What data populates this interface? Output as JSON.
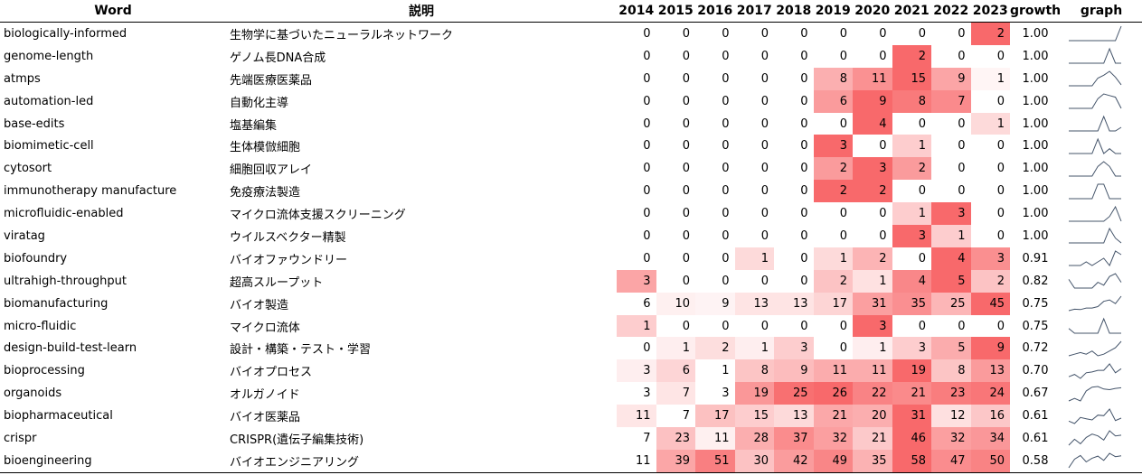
{
  "table": {
    "header": [
      "Word",
      "説明",
      "2014",
      "2015",
      "2016",
      "2017",
      "2018",
      "2019",
      "2020",
      "2021",
      "2022",
      "2023",
      "growth",
      "graph"
    ],
    "rows": [
      {
        "word": "biologically-informed",
        "desc": "生物学に基づいたニューラルネットワーク",
        "counts": [
          0,
          0,
          0,
          0,
          0,
          0,
          0,
          0,
          0,
          2
        ],
        "growth": "1.00"
      },
      {
        "word": "genome-length",
        "desc": "ゲノム長DNA合成",
        "counts": [
          0,
          0,
          0,
          0,
          0,
          0,
          0,
          2,
          0,
          0
        ],
        "growth": "1.00"
      },
      {
        "word": "atmps",
        "desc": "先端医療医薬品",
        "counts": [
          0,
          0,
          0,
          0,
          0,
          8,
          11,
          15,
          9,
          1
        ],
        "growth": "1.00"
      },
      {
        "word": "automation-led",
        "desc": "自動化主導",
        "counts": [
          0,
          0,
          0,
          0,
          0,
          6,
          9,
          8,
          7,
          0
        ],
        "growth": "1.00"
      },
      {
        "word": "base-edits",
        "desc": "塩基編集",
        "counts": [
          0,
          0,
          0,
          0,
          0,
          0,
          4,
          0,
          0,
          1
        ],
        "growth": "1.00"
      },
      {
        "word": "biomimetic-cell",
        "desc": "生体模倣細胞",
        "counts": [
          0,
          0,
          0,
          0,
          0,
          3,
          0,
          1,
          0,
          0
        ],
        "growth": "1.00"
      },
      {
        "word": "cytosort",
        "desc": "細胞回収アレイ",
        "counts": [
          0,
          0,
          0,
          0,
          0,
          2,
          3,
          2,
          0,
          0
        ],
        "growth": "1.00"
      },
      {
        "word": "immunotherapy manufacture",
        "desc": "免疫療法製造",
        "counts": [
          0,
          0,
          0,
          0,
          0,
          2,
          2,
          0,
          0,
          0
        ],
        "growth": "1.00"
      },
      {
        "word": "microfluidic-enabled",
        "desc": "マイクロ流体支援スクリーニング",
        "counts": [
          0,
          0,
          0,
          0,
          0,
          0,
          0,
          1,
          3,
          0
        ],
        "growth": "1.00"
      },
      {
        "word": "viratag",
        "desc": "ウイルスベクター精製",
        "counts": [
          0,
          0,
          0,
          0,
          0,
          0,
          0,
          3,
          1,
          0
        ],
        "growth": "1.00"
      },
      {
        "word": "biofoundry",
        "desc": "バイオファウンドリー",
        "counts": [
          0,
          0,
          0,
          1,
          0,
          1,
          2,
          0,
          4,
          3
        ],
        "growth": "0.91"
      },
      {
        "word": "ultrahigh-throughput",
        "desc": "超高スループット",
        "counts": [
          3,
          0,
          0,
          0,
          0,
          2,
          1,
          4,
          5,
          2
        ],
        "growth": "0.82"
      },
      {
        "word": "biomanufacturing",
        "desc": "バイオ製造",
        "counts": [
          6,
          10,
          9,
          13,
          13,
          17,
          31,
          35,
          25,
          45
        ],
        "growth": "0.75"
      },
      {
        "word": "micro-fluidic",
        "desc": "マイクロ流体",
        "counts": [
          1,
          0,
          0,
          0,
          0,
          0,
          3,
          0,
          0,
          0
        ],
        "growth": "0.75"
      },
      {
        "word": "design-build-test-learn",
        "desc": "設計・構築・テスト・学習",
        "counts": [
          0,
          1,
          2,
          1,
          3,
          0,
          1,
          3,
          5,
          9
        ],
        "growth": "0.72"
      },
      {
        "word": "bioprocessing",
        "desc": "バイオプロセス",
        "counts": [
          3,
          6,
          1,
          8,
          9,
          11,
          11,
          19,
          8,
          13
        ],
        "growth": "0.70"
      },
      {
        "word": "organoids",
        "desc": "オルガノイド",
        "counts": [
          3,
          7,
          3,
          19,
          25,
          26,
          22,
          21,
          23,
          24
        ],
        "growth": "0.67"
      },
      {
        "word": "biopharmaceutical",
        "desc": "バイオ医薬品",
        "counts": [
          11,
          7,
          17,
          15,
          13,
          21,
          20,
          31,
          12,
          16
        ],
        "growth": "0.61"
      },
      {
        "word": "crispr",
        "desc": "CRISPR(遺伝子編集技術)",
        "counts": [
          7,
          23,
          11,
          28,
          37,
          32,
          21,
          46,
          32,
          34
        ],
        "growth": "0.61"
      },
      {
        "word": "bioengineering",
        "desc": "バイオエンジニアリング",
        "counts": [
          11,
          39,
          51,
          30,
          42,
          49,
          35,
          58,
          47,
          50
        ],
        "growth": "0.58"
      }
    ]
  }
}
